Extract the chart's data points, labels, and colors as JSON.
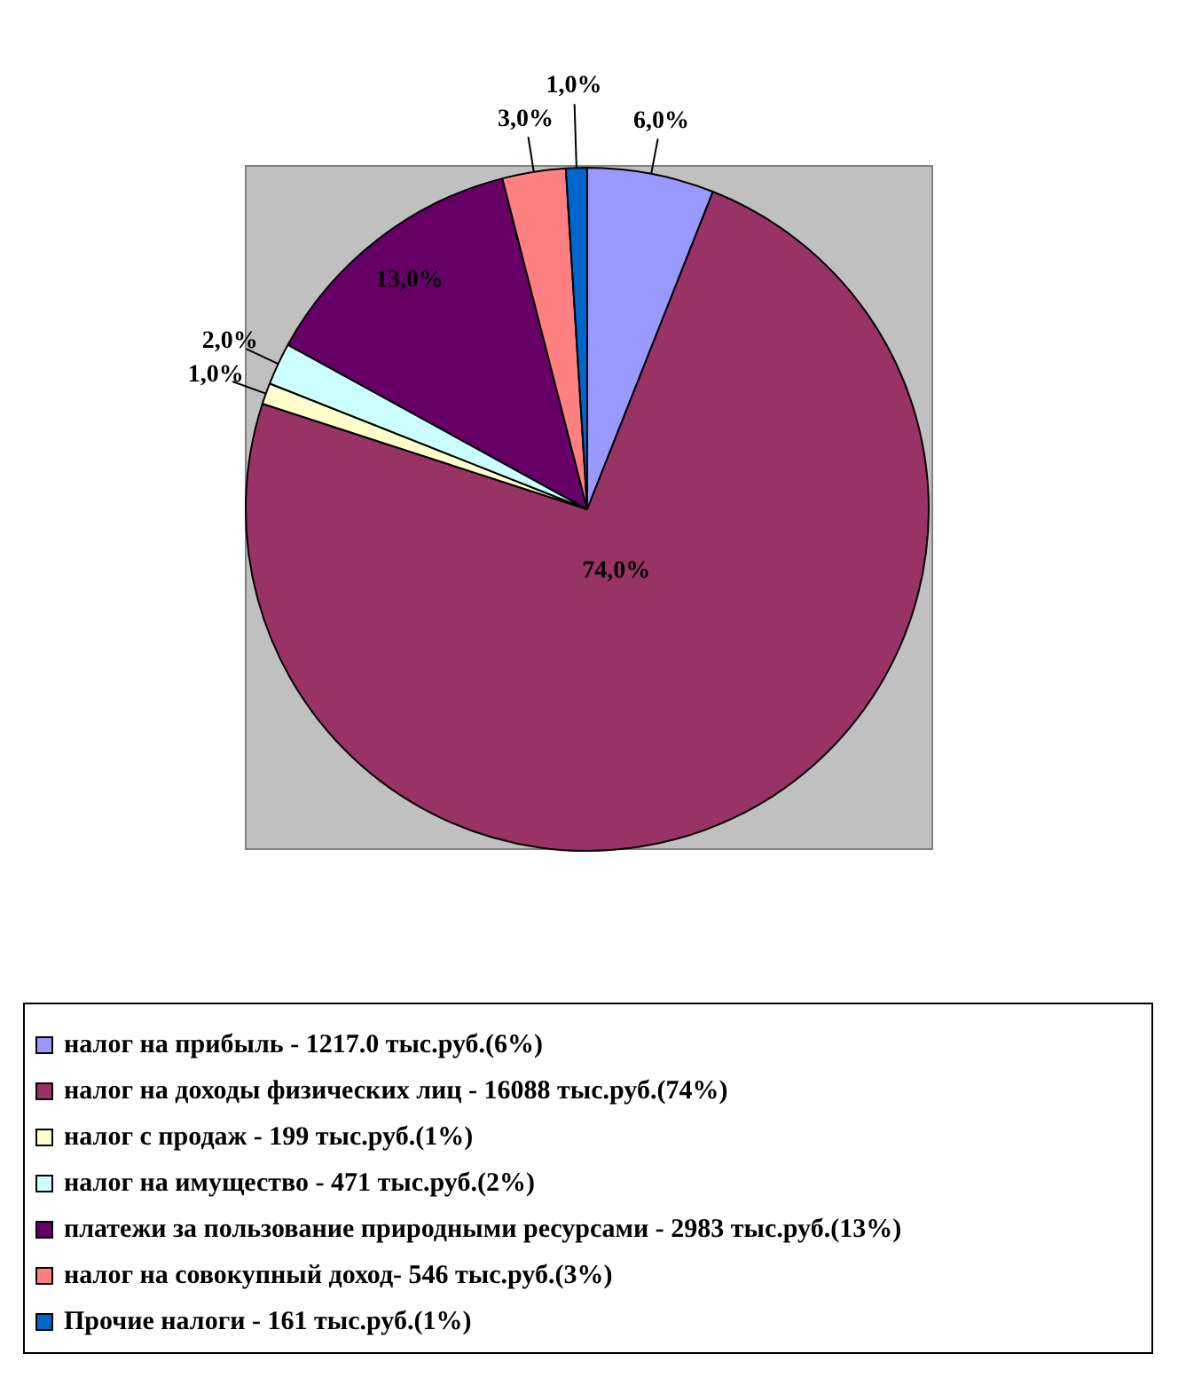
{
  "chart_data": {
    "type": "pie",
    "categories": [
      "налог на прибыль - 1217.0 тыс.руб.(6%)",
      "налог на доходы физических лиц - 16088 тыс.руб.(74%)",
      "налог с продаж - 199 тыс.руб.(1%)",
      "налог на имущество - 471 тыс.руб.(2%)",
      "платежи за пользование природными ресурсами - 2983 тыс.руб.(13%)",
      "налог на совокупный доход- 546 тыс.руб.(3%)",
      "Прочие налоги - 161 тыс.руб.(1%)"
    ],
    "values": [
      6,
      74,
      1,
      2,
      13,
      3,
      1
    ],
    "colors": [
      "#9999ff",
      "#993366",
      "#ffffcc",
      "#ccffff",
      "#660066",
      "#ff8080",
      "#0066cc"
    ],
    "value_labels": [
      "6,0%",
      "74,0%",
      "1,0%",
      "2,0%",
      "13,0%",
      "3,0%",
      "1,0%"
    ],
    "legend": "bottom"
  }
}
